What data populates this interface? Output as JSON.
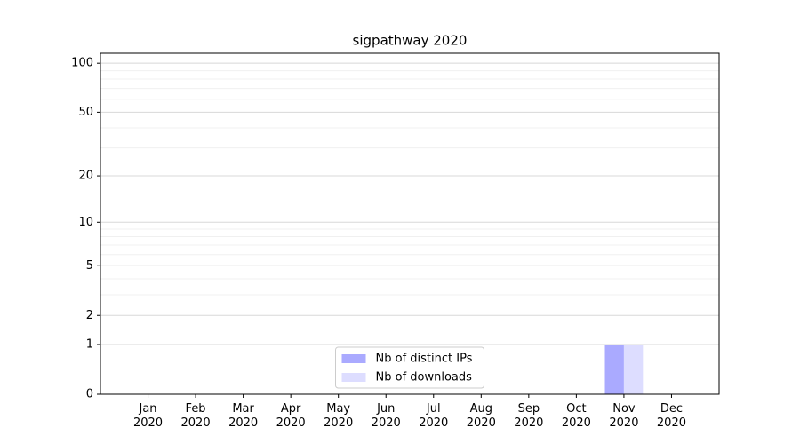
{
  "chart_data": {
    "type": "bar",
    "title": "sigpathway 2020",
    "categories": [
      "Jan\n2020",
      "Feb\n2020",
      "Mar\n2020",
      "Apr\n2020",
      "May\n2020",
      "Jun\n2020",
      "Jul\n2020",
      "Aug\n2020",
      "Sep\n2020",
      "Oct\n2020",
      "Nov\n2020",
      "Dec\n2020"
    ],
    "series": [
      {
        "name": "Nb of distinct IPs",
        "color": "#aaaaff",
        "values": [
          0,
          0,
          0,
          0,
          0,
          0,
          0,
          0,
          0,
          0,
          1,
          0
        ]
      },
      {
        "name": "Nb of downloads",
        "color": "#ddddff",
        "values": [
          0,
          0,
          0,
          0,
          0,
          0,
          0,
          0,
          0,
          0,
          1,
          0
        ]
      }
    ],
    "yscale": "log1p",
    "ylim": [
      0,
      115
    ],
    "yticks": [
      0,
      1,
      2,
      5,
      10,
      20,
      50,
      100
    ],
    "yminorticks": [
      3,
      4,
      6,
      7,
      8,
      9,
      30,
      40,
      60,
      70,
      80,
      90
    ],
    "grid": true,
    "legend": "lower center"
  }
}
